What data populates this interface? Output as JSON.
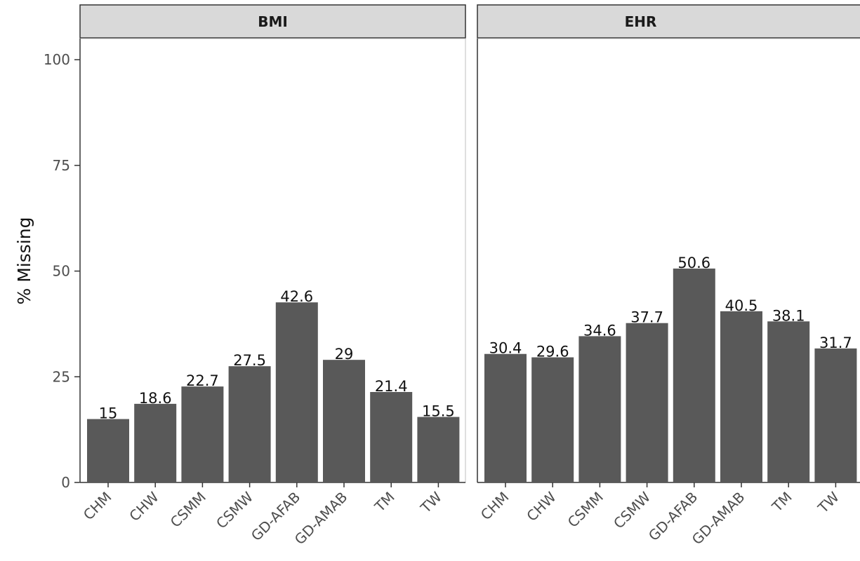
{
  "chart_data": {
    "type": "bar",
    "ylabel": "% Missing",
    "xlabel": "",
    "ylim": [
      0,
      105
    ],
    "yticks": [
      0,
      25,
      50,
      75,
      100
    ],
    "grid": false,
    "bar_color": "#595959",
    "categories": [
      "CHM",
      "CHW",
      "CSMM",
      "CSMW",
      "GD-AFAB",
      "GD-AMAB",
      "TM",
      "TW"
    ],
    "panels": [
      {
        "title": "BMI",
        "values": [
          15,
          18.6,
          22.7,
          27.5,
          42.6,
          29,
          21.4,
          15.5
        ]
      },
      {
        "title": "EHR",
        "values": [
          30.4,
          29.6,
          34.6,
          37.7,
          50.6,
          40.5,
          38.1,
          31.7
        ]
      }
    ]
  }
}
